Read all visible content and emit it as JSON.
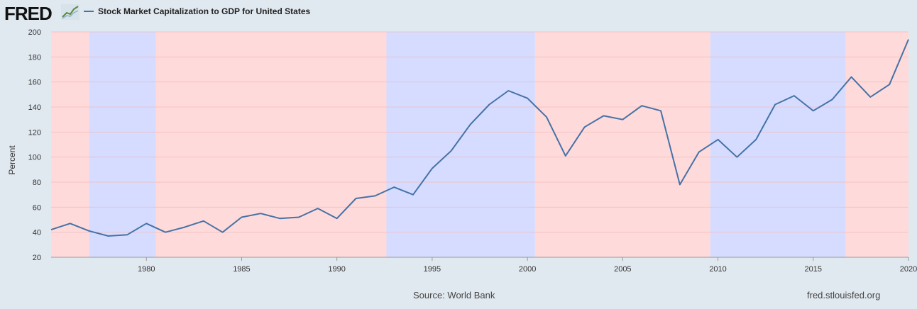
{
  "header": {
    "logo_text": "FRED",
    "logo_icon": "line-graph-icon",
    "series_title": "Stock Market Capitalization to GDP for United States",
    "series_color": "#4572a7"
  },
  "footer": {
    "source": "Source: World Bank",
    "url": "fred.stlouisfed.org"
  },
  "chart_data": {
    "type": "line",
    "title": "Stock Market Capitalization to GDP for United States",
    "ylabel": "Percent",
    "xlabel": "",
    "ylim": [
      20,
      200
    ],
    "xlim": [
      1975,
      2020
    ],
    "grid": true,
    "legend": "top-left",
    "y_ticks": [
      20,
      40,
      60,
      80,
      100,
      120,
      140,
      160,
      180,
      200
    ],
    "x_ticks": [
      1980,
      1985,
      1990,
      1995,
      2000,
      2005,
      2010,
      2015,
      2020
    ],
    "recessions": [
      {
        "start": 1975,
        "end": 1977,
        "color": "#ffdada"
      },
      {
        "start": 1977,
        "end": 1980.5,
        "color": "#d6dcff"
      },
      {
        "start": 1980.5,
        "end": 1992.6,
        "color": "#ffdada"
      },
      {
        "start": 1992.6,
        "end": 2000.4,
        "color": "#d6dcff"
      },
      {
        "start": 2000.4,
        "end": 2009.6,
        "color": "#ffdada"
      },
      {
        "start": 2009.6,
        "end": 2016.7,
        "color": "#d6dcff"
      },
      {
        "start": 2016.7,
        "end": 2020,
        "color": "#ffdada"
      }
    ],
    "series": [
      {
        "color": "#4572a7",
        "x": [
          1975,
          1976,
          1977,
          1978,
          1979,
          1980,
          1981,
          1982,
          1983,
          1984,
          1985,
          1986,
          1987,
          1988,
          1989,
          1990,
          1991,
          1992,
          1993,
          1994,
          1995,
          1996,
          1997,
          1998,
          1999,
          2000,
          2001,
          2002,
          2003,
          2004,
          2005,
          2006,
          2007,
          2008,
          2009,
          2010,
          2011,
          2012,
          2013,
          2014,
          2015,
          2016,
          2017,
          2018,
          2019,
          2020
        ],
        "values": [
          42,
          47,
          41,
          37,
          38,
          47,
          40,
          44,
          49,
          40,
          52,
          55,
          51,
          52,
          59,
          51,
          67,
          69,
          76,
          70,
          91,
          105,
          126,
          142,
          153,
          147,
          132,
          101,
          124,
          133,
          130,
          141,
          137,
          78,
          104,
          114,
          100,
          114,
          142,
          149,
          137,
          146,
          164,
          148,
          158,
          194
        ]
      }
    ]
  }
}
